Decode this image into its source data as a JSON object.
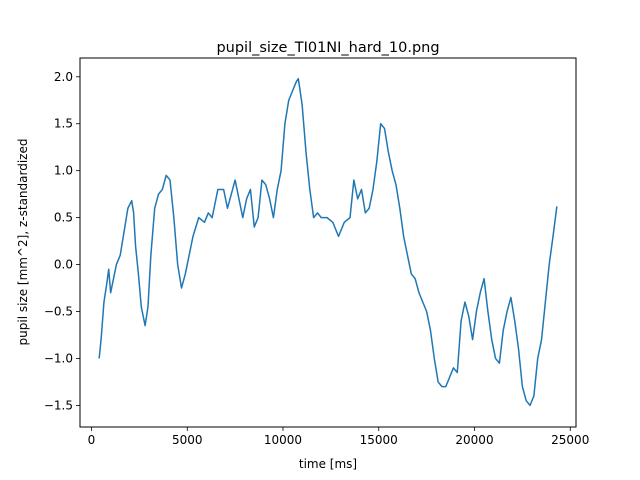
{
  "chart_data": {
    "type": "line",
    "title": "pupil_size_TI01NI_hard_10.png",
    "xlabel": "time [ms]",
    "ylabel": "pupil size [mm^2], z-standardized",
    "xlim": [
      -600,
      25300
    ],
    "ylim": [
      -1.73,
      2.2
    ],
    "xticks": [
      0,
      5000,
      10000,
      15000,
      20000,
      25000
    ],
    "xtick_labels": [
      "0",
      "5000",
      "10000",
      "15000",
      "20000",
      "25000"
    ],
    "yticks": [
      -1.5,
      -1.0,
      -0.5,
      0.0,
      0.5,
      1.0,
      1.5,
      2.0
    ],
    "ytick_labels": [
      "−1.5",
      "−1.0",
      "−0.5",
      "0.0",
      "0.5",
      "1.0",
      "1.5",
      "2.0"
    ],
    "grid": false,
    "series": [
      {
        "color": "#1f77b4",
        "x": [
          400,
          500,
          650,
          800,
          900,
          1000,
          1100,
          1200,
          1300,
          1500,
          1700,
          1900,
          2100,
          2200,
          2300,
          2450,
          2600,
          2800,
          2950,
          3100,
          3300,
          3500,
          3700,
          3900,
          4100,
          4300,
          4500,
          4700,
          4900,
          5100,
          5300,
          5600,
          5900,
          6100,
          6300,
          6600,
          6900,
          7100,
          7300,
          7500,
          7700,
          7900,
          8100,
          8300,
          8500,
          8700,
          8900,
          9100,
          9300,
          9500,
          9700,
          9900,
          10100,
          10300,
          10500,
          10700,
          10800,
          11000,
          11200,
          11400,
          11600,
          11800,
          12000,
          12300,
          12600,
          12900,
          13200,
          13500,
          13700,
          13900,
          14100,
          14300,
          14500,
          14700,
          14900,
          15100,
          15300,
          15500,
          15700,
          15900,
          16100,
          16300,
          16500,
          16700,
          16900,
          17100,
          17300,
          17500,
          17700,
          17900,
          18100,
          18300,
          18500,
          18700,
          18900,
          19100,
          19300,
          19500,
          19700,
          19900,
          20100,
          20300,
          20500,
          20700,
          20900,
          21100,
          21300,
          21500,
          21700,
          21900,
          22100,
          22300,
          22500,
          22700,
          22900,
          23100,
          23300,
          23500,
          23700,
          23900,
          24100,
          24300
        ],
        "values": [
          -1.0,
          -0.8,
          -0.4,
          -0.2,
          -0.05,
          -0.3,
          -0.2,
          -0.1,
          0.0,
          0.1,
          0.35,
          0.6,
          0.68,
          0.55,
          0.2,
          -0.1,
          -0.45,
          -0.65,
          -0.45,
          0.1,
          0.6,
          0.75,
          0.8,
          0.95,
          0.9,
          0.5,
          0.0,
          -0.25,
          -0.1,
          0.1,
          0.3,
          0.5,
          0.45,
          0.55,
          0.5,
          0.8,
          0.8,
          0.6,
          0.75,
          0.9,
          0.7,
          0.5,
          0.7,
          0.8,
          0.4,
          0.5,
          0.9,
          0.85,
          0.7,
          0.5,
          0.8,
          1.0,
          1.5,
          1.75,
          1.85,
          1.95,
          1.98,
          1.7,
          1.2,
          0.8,
          0.5,
          0.55,
          0.5,
          0.5,
          0.45,
          0.3,
          0.45,
          0.5,
          0.9,
          0.7,
          0.8,
          0.55,
          0.6,
          0.8,
          1.1,
          1.5,
          1.45,
          1.2,
          1.0,
          0.85,
          0.6,
          0.3,
          0.1,
          -0.1,
          -0.15,
          -0.3,
          -0.4,
          -0.5,
          -0.7,
          -1.0,
          -1.25,
          -1.3,
          -1.3,
          -1.2,
          -1.1,
          -1.15,
          -0.6,
          -0.4,
          -0.55,
          -0.8,
          -0.5,
          -0.3,
          -0.15,
          -0.5,
          -0.8,
          -1.0,
          -1.05,
          -0.7,
          -0.5,
          -0.35,
          -0.6,
          -0.9,
          -1.3,
          -1.45,
          -1.5,
          -1.4,
          -1.0,
          -0.8,
          -0.4,
          0.0,
          0.3,
          0.62
        ]
      }
    ]
  }
}
